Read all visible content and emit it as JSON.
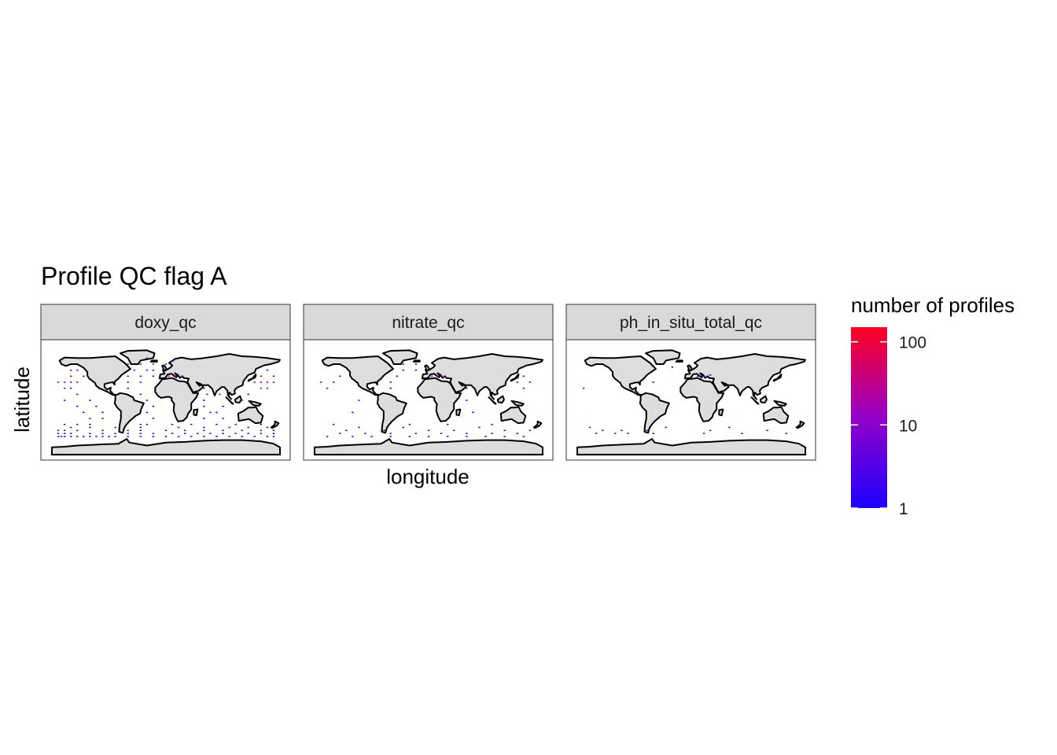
{
  "chart_data": {
    "type": "heatmap",
    "title": "Profile QC flag A",
    "xlabel": "longitude",
    "ylabel": "latitude",
    "facets": [
      "doxy_qc",
      "nitrate_qc",
      "ph_in_situ_total_qc"
    ],
    "legend": {
      "title": "number of profiles",
      "scale": "log10",
      "position": "right",
      "ticks": [
        1,
        10,
        100
      ],
      "tick_labels": [
        "1",
        "10",
        "100"
      ],
      "range": [
        1,
        150
      ],
      "color_low": "#1a00ff",
      "color_high": "#ff0022"
    },
    "xlim": [
      -180,
      180
    ],
    "ylim": [
      -90,
      90
    ],
    "grid": false,
    "land_fill": "#dddddd",
    "coast_stroke": "#000000",
    "strip_fill": "#d9d9d9",
    "series": [
      {
        "panel": "doxy_qc",
        "cells": [
          [
            -170,
            -60,
            1
          ],
          [
            -165,
            -60,
            2
          ],
          [
            -160,
            -60,
            1
          ],
          [
            -150,
            -60,
            1
          ],
          [
            -140,
            -60,
            2
          ],
          [
            -130,
            -60,
            1
          ],
          [
            -120,
            -60,
            1
          ],
          [
            -110,
            -60,
            1
          ],
          [
            -100,
            -60,
            2
          ],
          [
            -90,
            -60,
            1
          ],
          [
            -80,
            -60,
            1
          ],
          [
            -60,
            -60,
            1
          ],
          [
            -40,
            -60,
            2
          ],
          [
            -20,
            -60,
            1
          ],
          [
            0,
            -60,
            1
          ],
          [
            20,
            -60,
            1
          ],
          [
            40,
            -60,
            2
          ],
          [
            60,
            -60,
            1
          ],
          [
            80,
            -60,
            1
          ],
          [
            100,
            -60,
            2
          ],
          [
            120,
            -60,
            1
          ],
          [
            140,
            -60,
            2
          ],
          [
            160,
            -60,
            1
          ],
          [
            170,
            -60,
            1
          ],
          [
            -170,
            -55,
            1
          ],
          [
            -160,
            -55,
            2
          ],
          [
            -150,
            -55,
            1
          ],
          [
            -120,
            -55,
            1
          ],
          [
            -100,
            -55,
            1
          ],
          [
            -80,
            -55,
            3
          ],
          [
            -60,
            -55,
            2
          ],
          [
            -40,
            -55,
            1
          ],
          [
            -20,
            -55,
            2
          ],
          [
            10,
            -55,
            1
          ],
          [
            30,
            -55,
            1
          ],
          [
            50,
            -55,
            2
          ],
          [
            70,
            -55,
            1
          ],
          [
            90,
            -55,
            1
          ],
          [
            110,
            -55,
            2
          ],
          [
            130,
            -55,
            1
          ],
          [
            150,
            -55,
            3
          ],
          [
            170,
            -55,
            1
          ],
          [
            -170,
            -50,
            1
          ],
          [
            -160,
            -50,
            2
          ],
          [
            -140,
            -50,
            1
          ],
          [
            -100,
            -50,
            1
          ],
          [
            -60,
            -50,
            2
          ],
          [
            -40,
            -50,
            1
          ],
          [
            0,
            -50,
            1
          ],
          [
            30,
            -50,
            1
          ],
          [
            60,
            -50,
            2
          ],
          [
            90,
            -50,
            1
          ],
          [
            120,
            -50,
            2
          ],
          [
            150,
            -50,
            2
          ],
          [
            170,
            -50,
            1
          ],
          [
            -150,
            -45,
            2
          ],
          [
            -120,
            -45,
            1
          ],
          [
            -80,
            -45,
            2
          ],
          [
            -40,
            -45,
            1
          ],
          [
            20,
            -45,
            1
          ],
          [
            60,
            -45,
            1
          ],
          [
            100,
            -45,
            2
          ],
          [
            130,
            -45,
            1
          ],
          [
            160,
            -45,
            2
          ],
          [
            -160,
            -40,
            1
          ],
          [
            -140,
            -40,
            2
          ],
          [
            -120,
            -40,
            1
          ],
          [
            -40,
            -40,
            3
          ],
          [
            -30,
            -40,
            1
          ],
          [
            10,
            -40,
            1
          ],
          [
            40,
            -40,
            2
          ],
          [
            80,
            -40,
            1
          ],
          [
            110,
            -40,
            2
          ],
          [
            150,
            -40,
            1
          ],
          [
            -120,
            -30,
            2
          ],
          [
            -100,
            -30,
            1
          ],
          [
            -20,
            -30,
            1
          ],
          [
            60,
            -30,
            1
          ],
          [
            90,
            -30,
            2
          ],
          [
            -130,
            -20,
            1
          ],
          [
            -100,
            -20,
            1
          ],
          [
            -30,
            -20,
            1
          ],
          [
            70,
            -20,
            3
          ],
          [
            80,
            -20,
            2
          ],
          [
            -140,
            -10,
            1
          ],
          [
            -110,
            -10,
            1
          ],
          [
            -20,
            -10,
            1
          ],
          [
            60,
            -10,
            2
          ],
          [
            90,
            -10,
            1
          ],
          [
            -160,
            0,
            1
          ],
          [
            -120,
            0,
            1
          ],
          [
            -30,
            0,
            1
          ],
          [
            60,
            0,
            1
          ],
          [
            120,
            0,
            2
          ],
          [
            -140,
            10,
            2
          ],
          [
            -40,
            10,
            1
          ],
          [
            65,
            10,
            4
          ],
          [
            85,
            10,
            5
          ],
          [
            130,
            10,
            1
          ],
          [
            -160,
            20,
            3
          ],
          [
            -150,
            20,
            2
          ],
          [
            -60,
            20,
            1
          ],
          [
            60,
            20,
            6
          ],
          [
            150,
            20,
            8
          ],
          [
            160,
            20,
            10
          ],
          [
            -170,
            30,
            5
          ],
          [
            -160,
            30,
            8
          ],
          [
            -150,
            30,
            6
          ],
          [
            -140,
            30,
            4
          ],
          [
            -60,
            30,
            2
          ],
          [
            -40,
            30,
            1
          ],
          [
            140,
            30,
            10
          ],
          [
            150,
            30,
            15
          ],
          [
            160,
            30,
            12
          ],
          [
            170,
            30,
            8
          ],
          [
            -150,
            40,
            4
          ],
          [
            -130,
            40,
            2
          ],
          [
            -60,
            40,
            3
          ],
          [
            -40,
            40,
            2
          ],
          [
            -20,
            40,
            1
          ],
          [
            5,
            40,
            12
          ],
          [
            15,
            40,
            20
          ],
          [
            25,
            40,
            15
          ],
          [
            150,
            40,
            6
          ],
          [
            170,
            40,
            4
          ],
          [
            -150,
            50,
            3
          ],
          [
            -140,
            50,
            2
          ],
          [
            -50,
            50,
            5
          ],
          [
            -30,
            50,
            4
          ],
          [
            -20,
            50,
            2
          ],
          [
            160,
            50,
            3
          ],
          [
            -60,
            60,
            4
          ],
          [
            -40,
            60,
            6
          ],
          [
            -20,
            60,
            8
          ],
          [
            0,
            60,
            3
          ],
          [
            10,
            65,
            2
          ],
          [
            -30,
            70,
            3
          ]
        ]
      },
      {
        "panel": "nitrate_qc",
        "cells": [
          [
            -160,
            -60,
            1
          ],
          [
            -120,
            -60,
            1
          ],
          [
            -90,
            -60,
            1
          ],
          [
            -60,
            -60,
            1
          ],
          [
            -30,
            -60,
            1
          ],
          [
            0,
            -60,
            1
          ],
          [
            30,
            -60,
            1
          ],
          [
            60,
            -60,
            1
          ],
          [
            90,
            -60,
            1
          ],
          [
            120,
            -60,
            1
          ],
          [
            150,
            -60,
            1
          ],
          [
            -140,
            -55,
            1
          ],
          [
            -100,
            -55,
            1
          ],
          [
            -60,
            -55,
            1
          ],
          [
            -20,
            -55,
            1
          ],
          [
            20,
            -55,
            1
          ],
          [
            60,
            -55,
            1
          ],
          [
            100,
            -55,
            1
          ],
          [
            140,
            -55,
            1
          ],
          [
            -130,
            -50,
            1
          ],
          [
            -70,
            -50,
            1
          ],
          [
            0,
            -50,
            1
          ],
          [
            40,
            -50,
            1
          ],
          [
            120,
            -50,
            1
          ],
          [
            160,
            -50,
            1
          ],
          [
            -110,
            -45,
            1
          ],
          [
            -40,
            -45,
            1
          ],
          [
            80,
            -45,
            1
          ],
          [
            -150,
            -40,
            1
          ],
          [
            -30,
            -40,
            1
          ],
          [
            30,
            -40,
            1
          ],
          [
            100,
            -40,
            1
          ],
          [
            -120,
            -20,
            1
          ],
          [
            70,
            -20,
            1
          ],
          [
            -110,
            0,
            1
          ],
          [
            60,
            0,
            1
          ],
          [
            -160,
            20,
            2
          ],
          [
            -60,
            20,
            1
          ],
          [
            60,
            20,
            2
          ],
          [
            150,
            20,
            1
          ],
          [
            -170,
            30,
            3
          ],
          [
            -150,
            30,
            2
          ],
          [
            -60,
            30,
            1
          ],
          [
            140,
            30,
            3
          ],
          [
            160,
            30,
            2
          ],
          [
            -140,
            40,
            2
          ],
          [
            -50,
            40,
            1
          ],
          [
            5,
            40,
            8
          ],
          [
            15,
            40,
            12
          ],
          [
            25,
            40,
            6
          ],
          [
            150,
            40,
            2
          ],
          [
            -40,
            50,
            2
          ],
          [
            -20,
            50,
            1
          ],
          [
            -40,
            60,
            2
          ],
          [
            -20,
            60,
            1
          ]
        ]
      },
      {
        "panel": "ph_in_situ_total_qc",
        "cells": [
          [
            -150,
            -55,
            1
          ],
          [
            -120,
            -55,
            1
          ],
          [
            -100,
            -55,
            1
          ],
          [
            -60,
            -55,
            1
          ],
          [
            20,
            -55,
            1
          ],
          [
            80,
            -55,
            1
          ],
          [
            150,
            -55,
            1
          ],
          [
            -140,
            -50,
            1
          ],
          [
            -110,
            -50,
            1
          ],
          [
            -70,
            -50,
            1
          ],
          [
            30,
            -50,
            1
          ],
          [
            120,
            -50,
            1
          ],
          [
            -160,
            -45,
            1
          ],
          [
            -40,
            -45,
            1
          ],
          [
            60,
            -45,
            1
          ],
          [
            -170,
            20,
            1
          ],
          [
            -60,
            30,
            1
          ],
          [
            10,
            40,
            3
          ],
          [
            20,
            40,
            2
          ],
          [
            30,
            42,
            1
          ],
          [
            -30,
            55,
            1
          ]
        ]
      }
    ]
  }
}
